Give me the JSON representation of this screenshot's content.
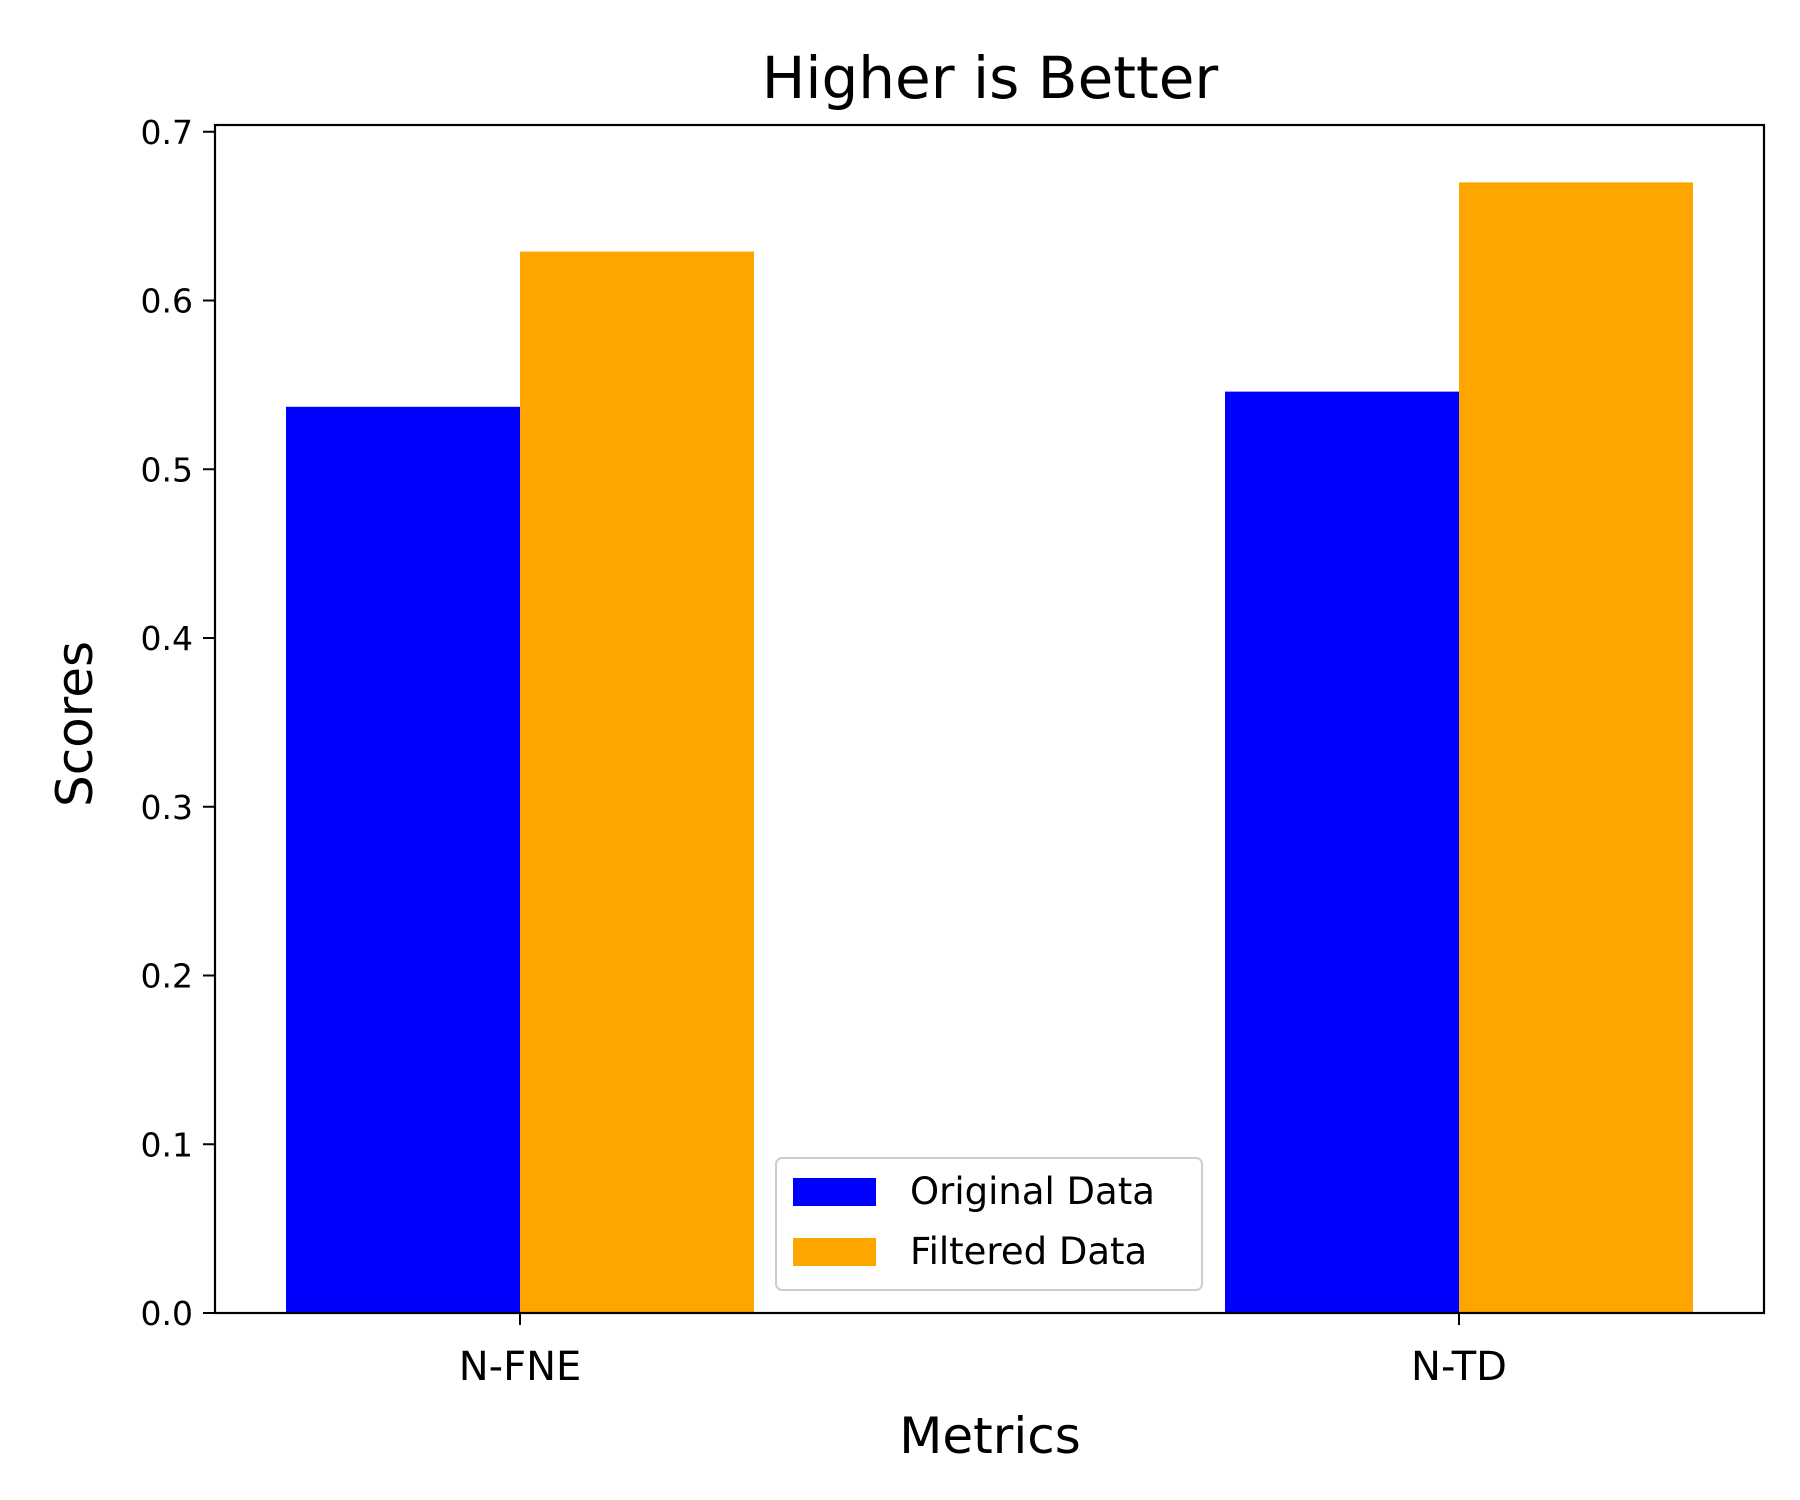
{
  "chart_data": {
    "type": "bar",
    "title": "Higher is Better",
    "xlabel": "Metrics",
    "ylabel": "Scores",
    "categories": [
      "N-FNE",
      "N-TD"
    ],
    "series": [
      {
        "name": "Original Data",
        "values": [
          0.537,
          0.546
        ],
        "color": "#0000ff"
      },
      {
        "name": "Filtered Data",
        "values": [
          0.629,
          0.67
        ],
        "color": "#ffa500"
      }
    ],
    "ylim": [
      0,
      0.704
    ],
    "yticks": [
      "0.0",
      "0.1",
      "0.2",
      "0.3",
      "0.4",
      "0.5",
      "0.6",
      "0.7"
    ],
    "grid": false,
    "legend_position": "lower-center"
  }
}
